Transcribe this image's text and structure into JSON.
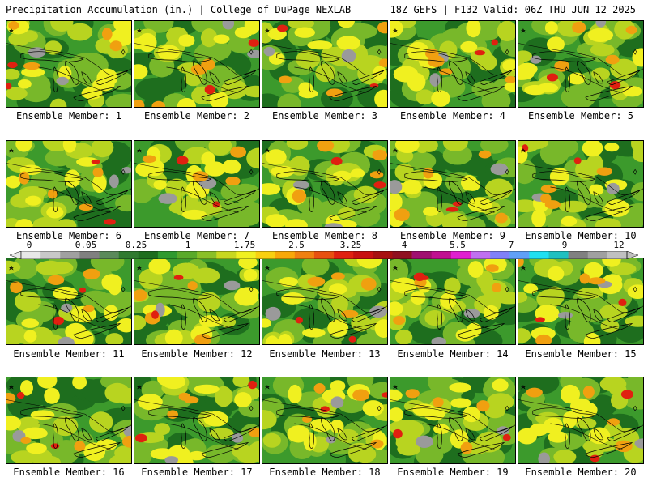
{
  "header": {
    "title": "Precipitation Accumulation (in.) | College of DuPage NEXLAB",
    "run_info": "18Z GEFS | F132 Valid: 06Z THU JUN 12 2025"
  },
  "members": [
    {
      "label": "Ensemble Member: 1"
    },
    {
      "label": "Ensemble Member: 2"
    },
    {
      "label": "Ensemble Member: 3"
    },
    {
      "label": "Ensemble Member: 4"
    },
    {
      "label": "Ensemble Member: 5"
    },
    {
      "label": "Ensemble Member: 6"
    },
    {
      "label": "Ensemble Member: 7"
    },
    {
      "label": "Ensemble Member: 8"
    },
    {
      "label": "Ensemble Member: 9"
    },
    {
      "label": "Ensemble Member: 10"
    },
    {
      "label": "Ensemble Member: 11"
    },
    {
      "label": "Ensemble Member: 12"
    },
    {
      "label": "Ensemble Member: 13"
    },
    {
      "label": "Ensemble Member: 14"
    },
    {
      "label": "Ensemble Member: 15"
    },
    {
      "label": "Ensemble Member: 16"
    },
    {
      "label": "Ensemble Member: 17"
    },
    {
      "label": "Ensemble Member: 18"
    },
    {
      "label": "Ensemble Member: 19"
    },
    {
      "label": "Ensemble Member: 20"
    }
  ],
  "colorbar": {
    "tick_labels": [
      "0",
      "0.05",
      "0.25",
      "1",
      "1.75",
      "2.5",
      "3.25",
      "4",
      "5.5",
      "7",
      "9",
      "12"
    ],
    "colors": [
      "#e8e8e8",
      "#c8c8c8",
      "#a0a0a0",
      "#808080",
      "#5a8a5a",
      "#2f7a2f",
      "#1e6e1e",
      "#2f9a2f",
      "#5aaa2a",
      "#8ac028",
      "#c8d820",
      "#f0f020",
      "#f8d010",
      "#f8a808",
      "#f08010",
      "#e85010",
      "#e02010",
      "#c81010",
      "#a81010",
      "#901020",
      "#a01070",
      "#c01090",
      "#e020d0",
      "#c070f0",
      "#8080f8",
      "#60a0f8",
      "#20e0f0",
      "#20c0c0",
      "#808080",
      "#a0a0a0",
      "#c0c0c0"
    ],
    "map_colors": {
      "dark_green": "#1e6e1e",
      "green": "#3c9a2c",
      "light_green": "#78b82a",
      "yellow_green": "#b8d420",
      "yellow": "#f0f020",
      "orange": "#f0a010",
      "red": "#e02010",
      "gray": "#9a9a9a"
    }
  }
}
